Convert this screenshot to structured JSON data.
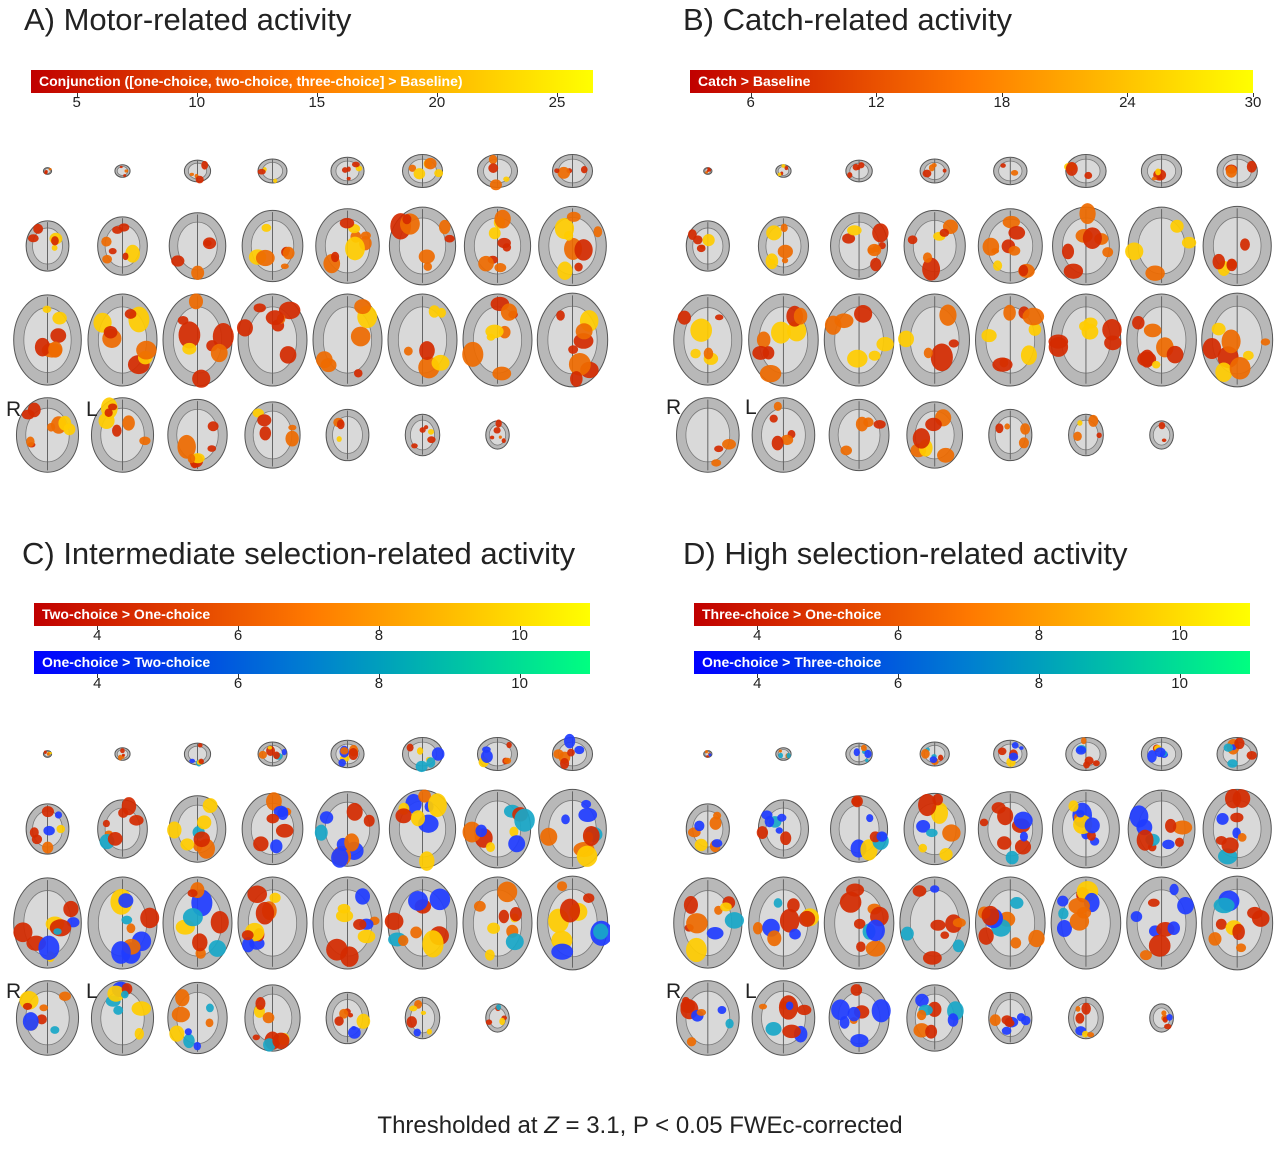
{
  "panels": [
    {
      "id": "A",
      "title": "A) Motor-related activity",
      "colorbars": [
        {
          "label": "Conjunction ([one-choice, two-choice, three-choice] > Baseline)",
          "scheme": "hot",
          "ticks": [
            "5",
            "10",
            "15",
            "20",
            "25"
          ],
          "range": [
            3.1,
            26.5
          ],
          "tick_values": [
            5,
            10,
            15,
            20,
            25
          ]
        }
      ],
      "hemisphere_labels": {
        "right": "R",
        "left": "L"
      },
      "activation": {
        "red": 0.6,
        "blue": 0.0,
        "yellow": 0.35
      }
    },
    {
      "id": "B",
      "title": "B) Catch-related activity",
      "colorbars": [
        {
          "label": "Catch > Baseline",
          "scheme": "hot",
          "ticks": [
            "6",
            "12",
            "18",
            "24",
            "30"
          ],
          "range": [
            3.1,
            30
          ],
          "tick_values": [
            6,
            12,
            18,
            24,
            30
          ]
        }
      ],
      "hemisphere_labels": {
        "right": "R",
        "left": "L"
      },
      "activation": {
        "red": 0.5,
        "blue": 0.0,
        "yellow": 0.3
      }
    },
    {
      "id": "C",
      "title": "C) Intermediate selection-related activity",
      "colorbars": [
        {
          "label": "Two-choice > One-choice",
          "scheme": "hot",
          "ticks": [
            "4",
            "6",
            "8",
            "10"
          ],
          "range": [
            3.1,
            11
          ],
          "tick_values": [
            4,
            6,
            8,
            10
          ]
        },
        {
          "label": "One-choice > Two-choice",
          "scheme": "cool",
          "ticks": [
            "4",
            "6",
            "8",
            "10"
          ],
          "range": [
            3.1,
            11
          ],
          "tick_values": [
            4,
            6,
            8,
            10
          ]
        }
      ],
      "hemisphere_labels": {
        "right": "R",
        "left": "L"
      },
      "activation": {
        "red": 0.45,
        "blue": 0.35,
        "yellow": 0.5
      }
    },
    {
      "id": "D",
      "title": "D) High selection-related activity",
      "colorbars": [
        {
          "label": "Three-choice > One-choice",
          "scheme": "hot",
          "ticks": [
            "4",
            "6",
            "8",
            "10"
          ],
          "range": [
            3.1,
            11
          ],
          "tick_values": [
            4,
            6,
            8,
            10
          ]
        },
        {
          "label": "One-choice > Three-choice",
          "scheme": "cool",
          "ticks": [
            "4",
            "6",
            "8",
            "10"
          ],
          "range": [
            3.1,
            11
          ],
          "tick_values": [
            4,
            6,
            8,
            10
          ]
        }
      ],
      "hemisphere_labels": {
        "right": "R",
        "left": "L"
      },
      "activation": {
        "red": 0.45,
        "blue": 0.45,
        "yellow": 0.5
      }
    }
  ],
  "footer": {
    "prefix": "Thresholded at ",
    "variable": "Z",
    "suffix": " = 3.1, P < 0.05 FWEc-corrected"
  },
  "colors": {
    "hot_start": "#c00000",
    "hot_mid": "#ff7a00",
    "hot_end": "#ffff00",
    "cool_start": "#0000ff",
    "cool_end": "#00ff80",
    "brain_gray": "#9a9a9a"
  }
}
